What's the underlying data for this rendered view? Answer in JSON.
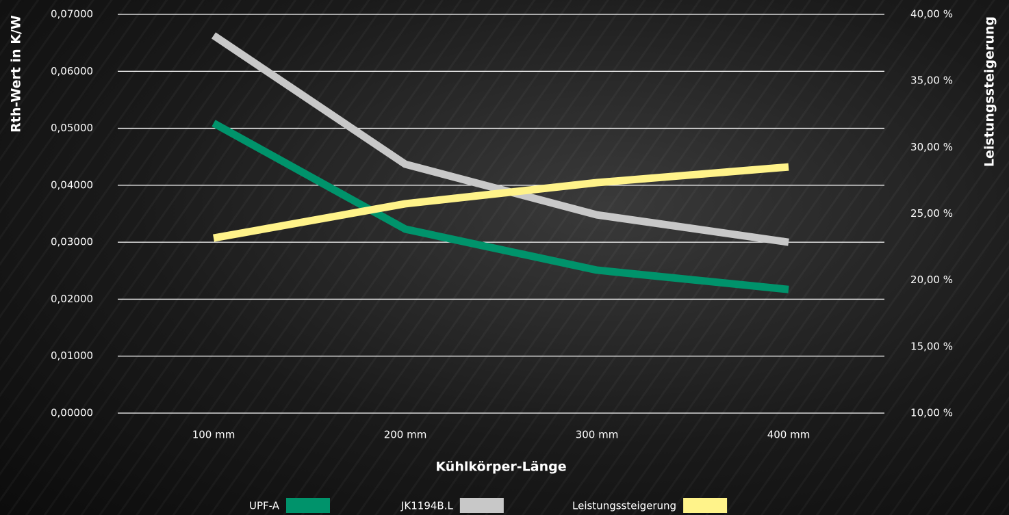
{
  "chart_data": {
    "type": "line",
    "x_label": "Kühlkörper-Länge",
    "y_label": "Rth-Wert in K/W",
    "y2_label": "Leistungssteigerung",
    "categories": [
      "100 mm",
      "200 mm",
      "300 mm",
      "400 mm"
    ],
    "series": [
      {
        "name": "UPF-A",
        "color": "#00936b",
        "values": [
          0.0509,
          0.0323,
          0.0251,
          0.0217
        ]
      },
      {
        "name": "JK1194B.L",
        "color": "#c8c8c8",
        "values": [
          0.0663,
          0.0437,
          0.0348,
          0.03
        ]
      },
      {
        "name": "Leistungssteigerung",
        "color": "#fff38a",
        "axis": "y2",
        "values": [
          23.17,
          25.75,
          27.34,
          28.52
        ]
      }
    ],
    "ylim": [
      0,
      0.07
    ],
    "yticks": [
      {
        "value": 0,
        "label": "0,00000"
      },
      {
        "value": 0.01,
        "label": "0,01000"
      },
      {
        "value": 0.02,
        "label": "0,02000"
      },
      {
        "value": 0.03,
        "label": "0,03000"
      },
      {
        "value": 0.04,
        "label": "0,04000"
      },
      {
        "value": 0.05,
        "label": "0,05000"
      },
      {
        "value": 0.06,
        "label": "0,06000"
      },
      {
        "value": 0.07,
        "label": "0,07000"
      }
    ],
    "y2lim": [
      10,
      40
    ],
    "y2ticks": [
      {
        "value": 10,
        "label": "10,00 %"
      },
      {
        "value": 15,
        "label": "15,00 %"
      },
      {
        "value": 20,
        "label": "20,00 %"
      },
      {
        "value": 25,
        "label": "25,00 %"
      },
      {
        "value": 30,
        "label": "30,00 %"
      },
      {
        "value": 35,
        "label": "35,00 %"
      },
      {
        "value": 40,
        "label": "40,00 %"
      }
    ],
    "grid": true,
    "legend": "bottom"
  }
}
